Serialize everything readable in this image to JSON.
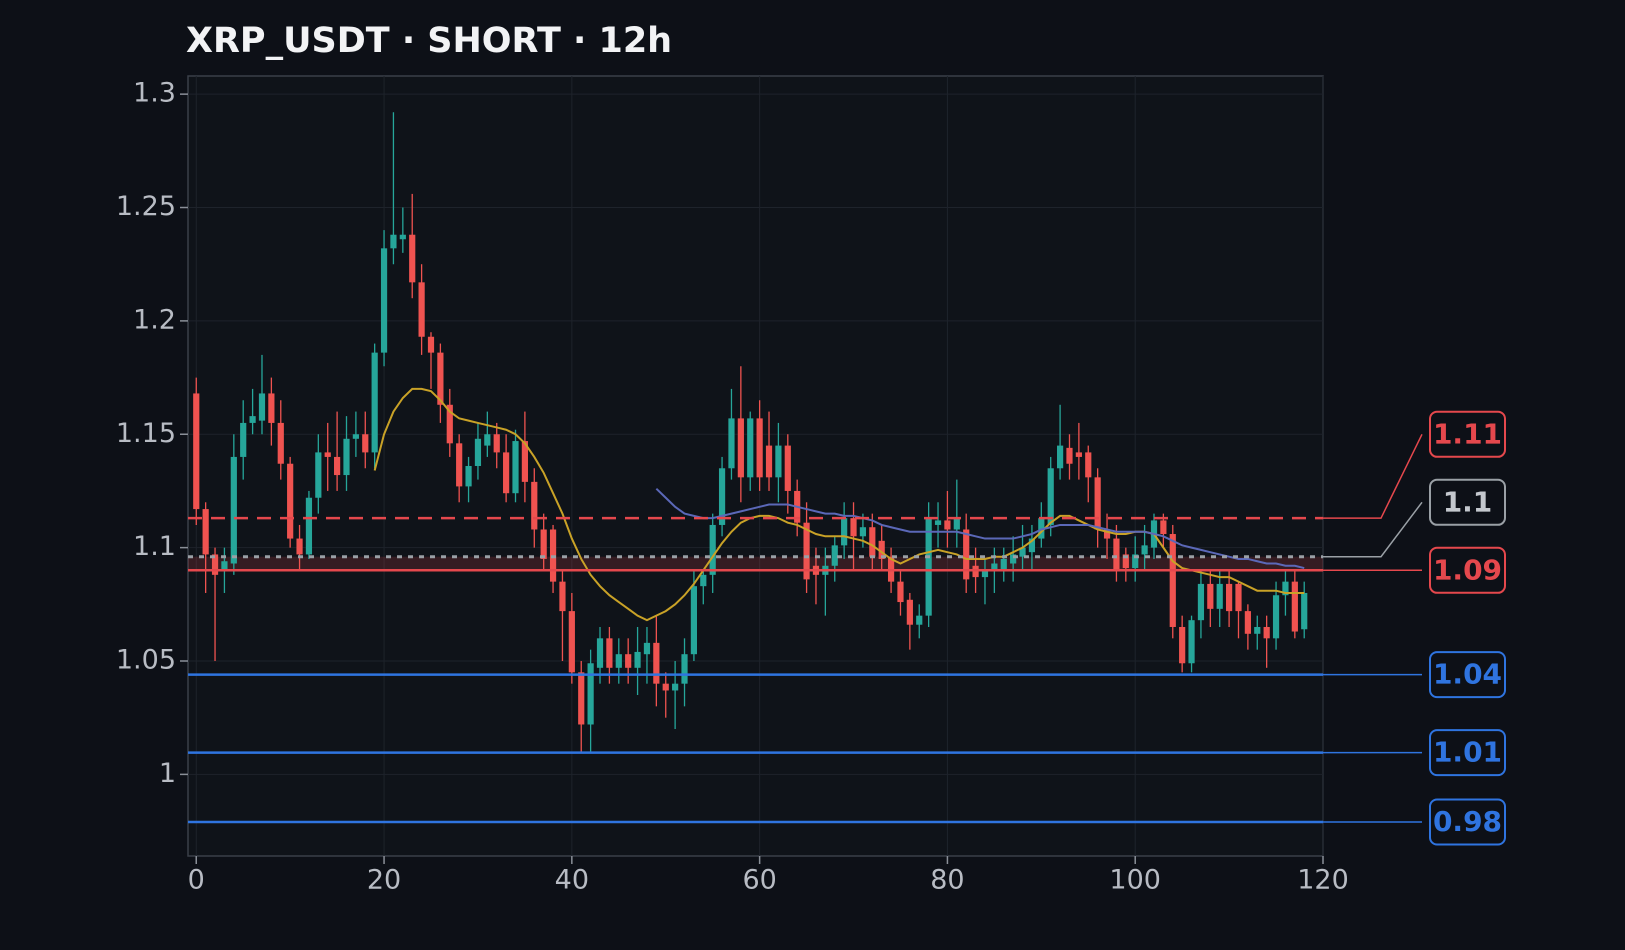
{
  "chart_data": {
    "type": "candlestick",
    "title": "XRP_USDT · SHORT · 12h",
    "x": [
      0,
      1,
      2,
      3,
      4,
      5,
      6,
      7,
      8,
      9,
      10,
      11,
      12,
      13,
      14,
      15,
      16,
      17,
      18,
      19,
      20,
      21,
      22,
      23,
      24,
      25,
      26,
      27,
      28,
      29,
      30,
      31,
      32,
      33,
      34,
      35,
      36,
      37,
      38,
      39,
      40,
      41,
      42,
      43,
      44,
      45,
      46,
      47,
      48,
      49,
      50,
      51,
      52,
      53,
      54,
      55,
      56,
      57,
      58,
      59,
      60,
      61,
      62,
      63,
      64,
      65,
      66,
      67,
      68,
      69,
      70,
      71,
      72,
      73,
      74,
      75,
      76,
      77,
      78,
      79,
      80,
      81,
      82,
      83,
      84,
      85,
      86,
      87,
      88,
      89,
      90,
      91,
      92,
      93,
      94,
      95,
      96,
      97,
      98,
      99,
      100,
      101,
      102,
      103,
      104,
      105,
      106,
      107,
      108,
      109,
      110,
      111,
      112,
      113,
      114,
      115,
      116,
      117,
      118
    ],
    "open": [
      1.168,
      1.117,
      1.097,
      1.09,
      1.093,
      1.14,
      1.155,
      1.156,
      1.168,
      1.155,
      1.137,
      1.104,
      1.097,
      1.122,
      1.142,
      1.14,
      1.132,
      1.148,
      1.15,
      1.142,
      1.186,
      1.232,
      1.236,
      1.238,
      1.217,
      1.193,
      1.186,
      1.163,
      1.146,
      1.127,
      1.136,
      1.145,
      1.15,
      1.142,
      1.124,
      1.147,
      1.129,
      1.108,
      1.108,
      1.085,
      1.072,
      1.045,
      1.022,
      1.047,
      1.06,
      1.047,
      1.053,
      1.047,
      1.053,
      1.058,
      1.04,
      1.037,
      1.04,
      1.053,
      1.083,
      1.088,
      1.11,
      1.135,
      1.157,
      1.131,
      1.157,
      1.145,
      1.131,
      1.145,
      1.125,
      1.111,
      1.092,
      1.088,
      1.092,
      1.101,
      1.113,
      1.105,
      1.109,
      1.103,
      1.096,
      1.085,
      1.077,
      1.066,
      1.07,
      1.11,
      1.112,
      1.108,
      1.108,
      1.092,
      1.087,
      1.09,
      1.09,
      1.093,
      1.096,
      1.098,
      1.104,
      1.11,
      1.135,
      1.144,
      1.142,
      1.142,
      1.131,
      1.108,
      1.104,
      1.097,
      1.091,
      1.097,
      1.1,
      1.112,
      1.106,
      1.065,
      1.049,
      1.068,
      1.084,
      1.073,
      1.084,
      1.084,
      1.072,
      1.062,
      1.065,
      1.06,
      1.079,
      1.085,
      1.064
    ],
    "high": [
      1.175,
      1.12,
      1.1,
      1.1,
      1.15,
      1.165,
      1.17,
      1.185,
      1.175,
      1.165,
      1.14,
      1.11,
      1.125,
      1.15,
      1.155,
      1.16,
      1.158,
      1.16,
      1.16,
      1.19,
      1.24,
      1.292,
      1.25,
      1.256,
      1.225,
      1.195,
      1.19,
      1.17,
      1.15,
      1.14,
      1.155,
      1.16,
      1.155,
      1.15,
      1.152,
      1.16,
      1.135,
      1.115,
      1.11,
      1.09,
      1.08,
      1.05,
      1.055,
      1.065,
      1.065,
      1.06,
      1.06,
      1.065,
      1.065,
      1.07,
      1.045,
      1.05,
      1.06,
      1.09,
      1.09,
      1.115,
      1.14,
      1.17,
      1.18,
      1.16,
      1.165,
      1.16,
      1.155,
      1.15,
      1.13,
      1.12,
      1.1,
      1.1,
      1.105,
      1.12,
      1.12,
      1.115,
      1.115,
      1.11,
      1.1,
      1.09,
      1.08,
      1.075,
      1.12,
      1.12,
      1.125,
      1.13,
      1.115,
      1.1,
      1.095,
      1.1,
      1.1,
      1.105,
      1.11,
      1.11,
      1.12,
      1.14,
      1.163,
      1.15,
      1.155,
      1.145,
      1.135,
      1.115,
      1.11,
      1.1,
      1.105,
      1.11,
      1.115,
      1.115,
      1.11,
      1.07,
      1.07,
      1.09,
      1.09,
      1.09,
      1.09,
      1.085,
      1.075,
      1.07,
      1.07,
      1.085,
      1.09,
      1.09,
      1.085
    ],
    "low": [
      1.11,
      1.08,
      1.05,
      1.08,
      1.088,
      1.13,
      1.15,
      1.15,
      1.145,
      1.13,
      1.1,
      1.09,
      1.095,
      1.115,
      1.125,
      1.125,
      1.125,
      1.14,
      1.135,
      1.135,
      1.18,
      1.225,
      1.23,
      1.21,
      1.185,
      1.17,
      1.155,
      1.14,
      1.12,
      1.12,
      1.13,
      1.14,
      1.135,
      1.12,
      1.12,
      1.12,
      1.1,
      1.09,
      1.08,
      1.05,
      1.04,
      1.01,
      1.01,
      1.04,
      1.04,
      1.04,
      1.04,
      1.035,
      1.04,
      1.03,
      1.025,
      1.02,
      1.03,
      1.05,
      1.075,
      1.08,
      1.105,
      1.13,
      1.12,
      1.125,
      1.125,
      1.125,
      1.12,
      1.115,
      1.105,
      1.08,
      1.075,
      1.07,
      1.085,
      1.095,
      1.09,
      1.1,
      1.09,
      1.09,
      1.08,
      1.07,
      1.055,
      1.06,
      1.065,
      1.1,
      1.1,
      1.1,
      1.08,
      1.08,
      1.075,
      1.08,
      1.085,
      1.085,
      1.09,
      1.09,
      1.1,
      1.105,
      1.13,
      1.13,
      1.13,
      1.12,
      1.1,
      1.095,
      1.085,
      1.085,
      1.085,
      1.09,
      1.095,
      1.1,
      1.06,
      1.045,
      1.045,
      1.06,
      1.065,
      1.065,
      1.065,
      1.06,
      1.055,
      1.055,
      1.047,
      1.055,
      1.07,
      1.06,
      1.06
    ],
    "close": [
      1.117,
      1.097,
      1.088,
      1.094,
      1.14,
      1.155,
      1.158,
      1.168,
      1.155,
      1.137,
      1.104,
      1.097,
      1.122,
      1.142,
      1.14,
      1.132,
      1.148,
      1.15,
      1.142,
      1.186,
      1.232,
      1.238,
      1.238,
      1.217,
      1.193,
      1.186,
      1.163,
      1.146,
      1.127,
      1.136,
      1.148,
      1.15,
      1.142,
      1.124,
      1.147,
      1.129,
      1.108,
      1.095,
      1.085,
      1.072,
      1.045,
      1.022,
      1.049,
      1.06,
      1.047,
      1.053,
      1.047,
      1.054,
      1.058,
      1.04,
      1.037,
      1.04,
      1.053,
      1.083,
      1.088,
      1.11,
      1.135,
      1.157,
      1.131,
      1.157,
      1.131,
      1.131,
      1.145,
      1.125,
      1.111,
      1.086,
      1.088,
      1.092,
      1.101,
      1.113,
      1.105,
      1.109,
      1.096,
      1.095,
      1.085,
      1.076,
      1.066,
      1.07,
      1.113,
      1.112,
      1.108,
      1.113,
      1.086,
      1.087,
      1.09,
      1.093,
      1.095,
      1.097,
      1.1,
      1.104,
      1.113,
      1.135,
      1.145,
      1.137,
      1.14,
      1.131,
      1.108,
      1.104,
      1.09,
      1.091,
      1.097,
      1.101,
      1.112,
      1.106,
      1.065,
      1.049,
      1.068,
      1.084,
      1.073,
      1.084,
      1.072,
      1.072,
      1.062,
      1.065,
      1.06,
      1.079,
      1.085,
      1.063,
      1.08
    ],
    "up_color": "#26a69a",
    "down_color": "#ef5350",
    "overlays": [
      {
        "color": "#c9a227",
        "values": [
          null,
          null,
          null,
          null,
          null,
          null,
          null,
          null,
          null,
          null,
          null,
          null,
          null,
          null,
          null,
          null,
          null,
          null,
          null,
          1.134,
          1.15,
          1.16,
          1.166,
          1.17,
          1.17,
          1.169,
          1.165,
          1.16,
          1.157,
          1.156,
          1.155,
          1.154,
          1.153,
          1.152,
          1.15,
          1.146,
          1.14,
          1.133,
          1.124,
          1.115,
          1.104,
          1.095,
          1.088,
          1.083,
          1.079,
          1.076,
          1.073,
          1.07,
          1.068,
          1.07,
          1.072,
          1.075,
          1.079,
          1.084,
          1.09,
          1.096,
          1.102,
          1.107,
          1.111,
          1.113,
          1.114,
          1.114,
          1.113,
          1.111,
          1.11,
          1.108,
          1.106,
          1.105,
          1.105,
          1.105,
          1.104,
          1.103,
          1.101,
          1.098,
          1.095,
          1.093,
          1.095,
          1.097,
          1.098,
          1.099,
          1.098,
          1.097,
          1.095,
          1.095,
          1.095,
          1.096,
          1.096,
          1.098,
          1.1,
          1.103,
          1.107,
          1.111,
          1.114,
          1.114,
          1.112,
          1.11,
          1.108,
          1.107,
          1.106,
          1.106,
          1.107,
          1.107,
          1.106,
          1.1,
          1.094,
          1.091,
          1.09,
          1.089,
          1.088,
          1.087,
          1.087,
          1.085,
          1.083,
          1.081,
          1.081,
          1.081,
          1.08,
          1.08,
          1.08
        ]
      },
      {
        "color": "#5b68b8",
        "values": [
          null,
          null,
          null,
          null,
          null,
          null,
          null,
          null,
          null,
          null,
          null,
          null,
          null,
          null,
          null,
          null,
          null,
          null,
          null,
          null,
          null,
          null,
          null,
          null,
          null,
          null,
          null,
          null,
          null,
          null,
          null,
          null,
          null,
          null,
          null,
          null,
          null,
          null,
          null,
          null,
          null,
          null,
          null,
          null,
          null,
          null,
          null,
          null,
          null,
          1.126,
          1.122,
          1.118,
          1.115,
          1.114,
          1.113,
          1.113,
          1.114,
          1.115,
          1.116,
          1.117,
          1.118,
          1.119,
          1.119,
          1.119,
          1.118,
          1.117,
          1.116,
          1.115,
          1.115,
          1.114,
          1.114,
          1.113,
          1.112,
          1.11,
          1.109,
          1.108,
          1.107,
          1.107,
          1.107,
          1.107,
          1.107,
          1.107,
          1.106,
          1.105,
          1.104,
          1.104,
          1.104,
          1.104,
          1.105,
          1.106,
          1.108,
          1.109,
          1.11,
          1.11,
          1.11,
          1.11,
          1.109,
          1.108,
          1.107,
          1.107,
          1.107,
          1.107,
          1.106,
          1.105,
          1.103,
          1.101,
          1.1,
          1.099,
          1.098,
          1.097,
          1.096,
          1.095,
          1.095,
          1.094,
          1.093,
          1.093,
          1.092,
          1.092,
          1.091
        ]
      }
    ],
    "zone": {
      "range": [
        1.09,
        1.096
      ],
      "color": "rgba(229,72,77,0.18)"
    },
    "levels": [
      {
        "value": 1.113,
        "label": "1.11",
        "color": "#e5484d",
        "style": "dashed"
      },
      {
        "value": 1.096,
        "label": "1.1",
        "color": "#9aa0a6",
        "style": "dotted"
      },
      {
        "value": 1.09,
        "label": "1.09",
        "color": "#e5484d",
        "style": "solid"
      },
      {
        "value": 1.044,
        "label": "1.04",
        "color": "#2f74e0",
        "style": "solid"
      },
      {
        "value": 1.0096,
        "label": "1.01",
        "color": "#2f74e0",
        "style": "solid"
      },
      {
        "value": 0.979,
        "label": "0.98",
        "color": "#2f74e0",
        "style": "solid"
      }
    ],
    "xlim": [
      -0.88,
      120
    ],
    "ylim": [
      0.964,
      1.308
    ],
    "xticks": [
      0,
      20,
      40,
      60,
      80,
      100,
      120
    ],
    "yticks": [
      1,
      1.05,
      1.1,
      1.15,
      1.2,
      1.25,
      1.3
    ],
    "grid": true
  }
}
